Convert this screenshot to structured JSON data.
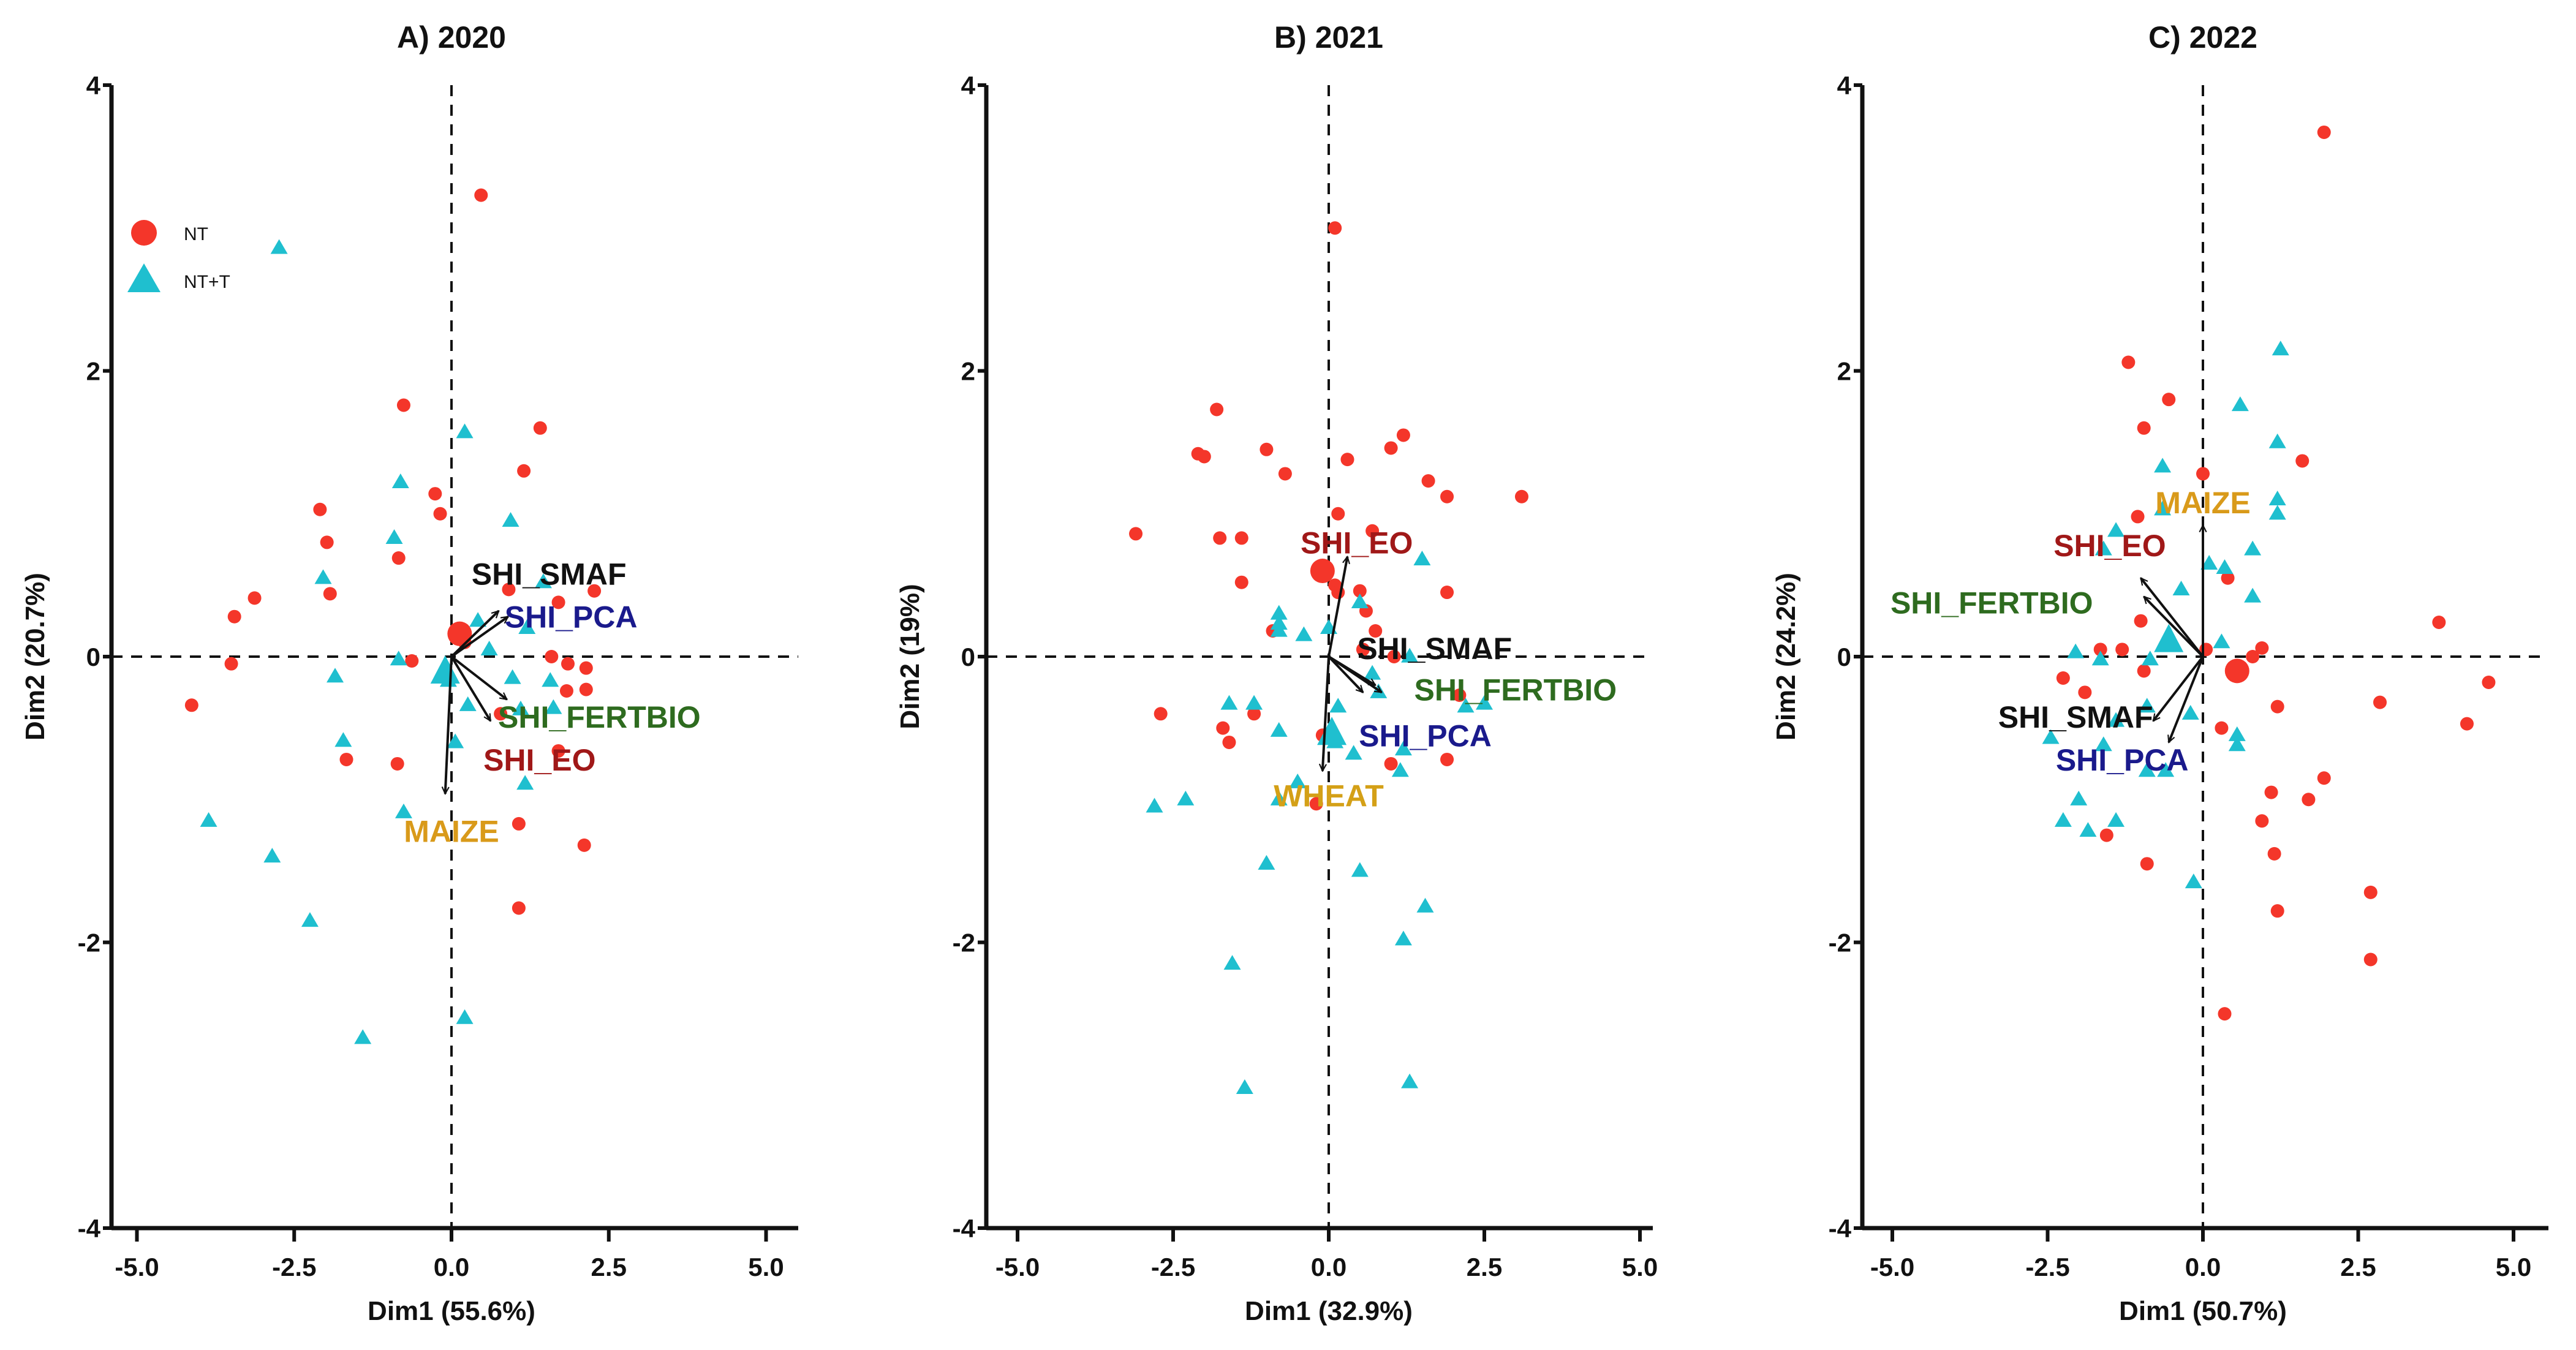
{
  "chart_data": [
    {
      "type": "scatter",
      "title": "A) 2020",
      "xlabel": "Dim1 (55.6%)",
      "ylabel": "Dim2 (20.7%)",
      "xlim": [
        -5.5,
        5.5
      ],
      "ylim": [
        -4,
        4
      ],
      "xticks": [
        "-5.0",
        "-2.5",
        "0.0",
        "2.5",
        "5.0"
      ],
      "yticks": [
        "-4",
        "-2",
        "0",
        "2",
        "4"
      ],
      "legend": {
        "show": true,
        "placement": "top-left",
        "entries": [
          "NT",
          "NT+T"
        ]
      },
      "series": [
        {
          "name": "NT",
          "marker": "circle",
          "color": "#f4362a",
          "points": [
            [
              0.47,
              3.23
            ],
            [
              -0.76,
              1.76
            ],
            [
              1.41,
              1.6
            ],
            [
              1.15,
              1.3
            ],
            [
              -0.26,
              1.14
            ],
            [
              -0.18,
              1.0
            ],
            [
              -2.09,
              1.03
            ],
            [
              -1.98,
              0.8
            ],
            [
              -0.84,
              0.69
            ],
            [
              -3.13,
              0.41
            ],
            [
              -3.45,
              0.28
            ],
            [
              -1.93,
              0.44
            ],
            [
              -3.5,
              -0.05
            ],
            [
              -4.13,
              -0.34
            ],
            [
              -0.63,
              -0.03
            ],
            [
              -1.67,
              -0.72
            ],
            [
              -0.86,
              -0.75
            ],
            [
              0.91,
              0.47
            ],
            [
              2.27,
              0.46
            ],
            [
              1.7,
              0.38
            ],
            [
              0.21,
              0.1
            ],
            [
              1.59,
              0.0
            ],
            [
              1.85,
              -0.05
            ],
            [
              2.14,
              -0.08
            ],
            [
              1.83,
              -0.24
            ],
            [
              2.14,
              -0.23
            ],
            [
              1.7,
              -0.66
            ],
            [
              1.07,
              -1.17
            ],
            [
              2.11,
              -1.32
            ],
            [
              1.07,
              -1.76
            ],
            [
              0.78,
              -0.4
            ]
          ],
          "centroid": [
            0.13,
            0.16
          ]
        },
        {
          "name": "NT+T",
          "marker": "triangle",
          "color": "#1fbfcf",
          "points": [
            [
              -2.74,
              2.86
            ],
            [
              0.21,
              1.57
            ],
            [
              -0.81,
              1.22
            ],
            [
              0.94,
              0.95
            ],
            [
              -0.91,
              0.83
            ],
            [
              -2.04,
              0.55
            ],
            [
              0.42,
              0.25
            ],
            [
              1.46,
              0.52
            ],
            [
              1.2,
              0.2
            ],
            [
              0.6,
              0.05
            ],
            [
              -0.84,
              -0.02
            ],
            [
              -1.85,
              -0.14
            ],
            [
              -0.16,
              -0.14
            ],
            [
              -0.05,
              -0.17
            ],
            [
              0.26,
              -0.34
            ],
            [
              0.97,
              -0.15
            ],
            [
              1.57,
              -0.17
            ],
            [
              1.1,
              -0.37
            ],
            [
              -1.72,
              -0.59
            ],
            [
              1.17,
              -0.89
            ],
            [
              -0.76,
              -1.09
            ],
            [
              -3.86,
              -1.15
            ],
            [
              -2.85,
              -1.4
            ],
            [
              -2.25,
              -1.85
            ],
            [
              -1.41,
              -2.67
            ],
            [
              0.21,
              -2.53
            ],
            [
              1.62,
              -0.36
            ],
            [
              0.06,
              -0.6
            ]
          ],
          "centroid": [
            -0.1,
            -0.12
          ]
        }
      ],
      "vectors": [
        {
          "name": "SHI_SMAF",
          "end": [
            0.75,
            0.32
          ],
          "color": "#111111",
          "label_at": [
            1.55,
            0.58
          ]
        },
        {
          "name": "SHI_PCA",
          "end": [
            0.9,
            0.28
          ],
          "color": "#1a1a8c",
          "label_at": [
            1.9,
            0.28
          ]
        },
        {
          "name": "SHI_FERTBIO",
          "end": [
            0.88,
            -0.3
          ],
          "color": "#2e6b1f",
          "label_at": [
            2.35,
            -0.42
          ]
        },
        {
          "name": "SHI_EO",
          "end": [
            0.62,
            -0.45
          ],
          "color": "#a01818",
          "label_at": [
            1.4,
            -0.72
          ]
        },
        {
          "name": "MAIZE",
          "end": [
            -0.1,
            -0.96
          ],
          "color": "#d99a1a",
          "label_at": [
            0.0,
            -1.22
          ]
        }
      ]
    },
    {
      "type": "scatter",
      "title": "B) 2021",
      "xlabel": "Dim1 (32.9%)",
      "ylabel": "Dim2 (19%)",
      "xlim": [
        -5.5,
        5.5
      ],
      "ylim": [
        -4,
        4
      ],
      "xticks": [
        "-5.0",
        "-2.5",
        "0.0",
        "2.5",
        "5.0"
      ],
      "yticks": [
        "-4",
        "-2",
        "0",
        "2",
        "4"
      ],
      "legend": {
        "show": false
      },
      "series": [
        {
          "name": "NT",
          "marker": "circle",
          "color": "#f4362a",
          "points": [
            [
              0.1,
              3.0
            ],
            [
              -1.8,
              1.73
            ],
            [
              -2.1,
              1.42
            ],
            [
              -2.0,
              1.4
            ],
            [
              -1.0,
              1.45
            ],
            [
              -0.7,
              1.28
            ],
            [
              0.3,
              1.38
            ],
            [
              1.0,
              1.46
            ],
            [
              1.2,
              1.55
            ],
            [
              1.6,
              1.23
            ],
            [
              1.9,
              1.12
            ],
            [
              3.1,
              1.12
            ],
            [
              0.15,
              1.0
            ],
            [
              -3.1,
              0.86
            ],
            [
              -1.75,
              0.83
            ],
            [
              -1.4,
              0.83
            ],
            [
              0.7,
              0.88
            ],
            [
              -1.4,
              0.52
            ],
            [
              0.1,
              0.5
            ],
            [
              0.15,
              0.45
            ],
            [
              0.5,
              0.46
            ],
            [
              0.6,
              0.32
            ],
            [
              1.9,
              0.45
            ],
            [
              0.75,
              0.18
            ],
            [
              -0.9,
              0.18
            ],
            [
              0.55,
              0.05
            ],
            [
              1.05,
              0.0
            ],
            [
              -1.2,
              -0.4
            ],
            [
              -2.7,
              -0.4
            ],
            [
              -1.7,
              -0.5
            ],
            [
              -1.6,
              -0.6
            ],
            [
              -0.1,
              -0.55
            ],
            [
              2.1,
              -0.27
            ],
            [
              1.0,
              -0.75
            ],
            [
              1.9,
              -0.72
            ],
            [
              -0.2,
              -1.03
            ]
          ],
          "centroid": [
            -0.1,
            0.6
          ]
        },
        {
          "name": "NT+T",
          "marker": "triangle",
          "color": "#1fbfcf",
          "points": [
            [
              1.5,
              0.68
            ],
            [
              0.5,
              0.38
            ],
            [
              -0.8,
              0.3
            ],
            [
              -0.8,
              0.23
            ],
            [
              -0.8,
              0.18
            ],
            [
              -0.4,
              0.15
            ],
            [
              0.0,
              0.2
            ],
            [
              1.3,
              0.0
            ],
            [
              0.7,
              -0.12
            ],
            [
              0.8,
              -0.25
            ],
            [
              -1.6,
              -0.33
            ],
            [
              -1.2,
              -0.33
            ],
            [
              0.15,
              -0.35
            ],
            [
              -0.8,
              -0.52
            ],
            [
              0.1,
              -0.6
            ],
            [
              -0.5,
              -0.88
            ],
            [
              1.15,
              -0.8
            ],
            [
              2.2,
              -0.35
            ],
            [
              2.5,
              -0.33
            ],
            [
              0.4,
              -0.68
            ],
            [
              1.2,
              -0.65
            ],
            [
              -2.8,
              -1.05
            ],
            [
              -2.3,
              -1.0
            ],
            [
              -1.0,
              -1.45
            ],
            [
              0.5,
              -1.5
            ],
            [
              1.55,
              -1.75
            ],
            [
              1.2,
              -1.98
            ],
            [
              -1.55,
              -2.15
            ],
            [
              -1.35,
              -3.02
            ],
            [
              1.3,
              -2.98
            ],
            [
              -0.8,
              -1.0
            ]
          ],
          "centroid": [
            0.05,
            -0.55
          ]
        }
      ],
      "vectors": [
        {
          "name": "SHI_EO",
          "end": [
            0.3,
            0.7
          ],
          "color": "#a01818",
          "label_at": [
            0.45,
            0.8
          ]
        },
        {
          "name": "SHI_SMAF",
          "end": [
            0.75,
            -0.2
          ],
          "color": "#111111",
          "label_at": [
            1.7,
            0.06
          ]
        },
        {
          "name": "SHI_FERTBIO",
          "end": [
            0.85,
            -0.25
          ],
          "color": "#2e6b1f",
          "label_at": [
            3.0,
            -0.23
          ]
        },
        {
          "name": "SHI_PCA",
          "end": [
            0.55,
            -0.25
          ],
          "color": "#1a1a8c",
          "label_at": [
            1.55,
            -0.55
          ]
        },
        {
          "name": "WHEAT",
          "end": [
            -0.1,
            -0.8
          ],
          "color": "#d4a017",
          "label_at": [
            0.0,
            -0.97
          ]
        }
      ]
    },
    {
      "type": "scatter",
      "title": "C) 2022",
      "xlabel": "Dim1 (50.7%)",
      "ylabel": "Dim2 (24.2%)",
      "xlim": [
        -5.5,
        5.5
      ],
      "ylim": [
        -4,
        4
      ],
      "xticks": [
        "-5.0",
        "-2.5",
        "0.0",
        "2.5",
        "5.0"
      ],
      "yticks": [
        "-4",
        "-2",
        "0",
        "2",
        "4"
      ],
      "legend": {
        "show": false
      },
      "series": [
        {
          "name": "NT",
          "marker": "circle",
          "color": "#f4362a",
          "points": [
            [
              1.95,
              3.67
            ],
            [
              -1.2,
              2.06
            ],
            [
              -0.55,
              1.8
            ],
            [
              -0.95,
              1.6
            ],
            [
              1.6,
              1.37
            ],
            [
              -0.0,
              1.28
            ],
            [
              -1.05,
              0.98
            ],
            [
              0.4,
              0.55
            ],
            [
              -1.3,
              0.05
            ],
            [
              -1.65,
              0.05
            ],
            [
              -1.0,
              0.25
            ],
            [
              0.05,
              0.05
            ],
            [
              0.95,
              0.06
            ],
            [
              0.8,
              0.0
            ],
            [
              3.8,
              0.24
            ],
            [
              -2.25,
              -0.15
            ],
            [
              -1.9,
              -0.25
            ],
            [
              -0.95,
              -0.1
            ],
            [
              1.2,
              -0.35
            ],
            [
              2.85,
              -0.32
            ],
            [
              4.6,
              -0.18
            ],
            [
              0.3,
              -0.5
            ],
            [
              4.25,
              -0.47
            ],
            [
              1.95,
              -0.85
            ],
            [
              1.1,
              -0.95
            ],
            [
              1.7,
              -1.0
            ],
            [
              0.95,
              -1.15
            ],
            [
              -1.55,
              -1.25
            ],
            [
              1.15,
              -1.38
            ],
            [
              -0.9,
              -1.45
            ],
            [
              2.7,
              -1.65
            ],
            [
              1.2,
              -1.78
            ],
            [
              2.7,
              -2.12
            ],
            [
              0.35,
              -2.5
            ]
          ],
          "centroid": [
            0.55,
            -0.1
          ]
        },
        {
          "name": "NT+T",
          "marker": "triangle",
          "color": "#1fbfcf",
          "points": [
            [
              1.25,
              2.15
            ],
            [
              0.6,
              1.76
            ],
            [
              1.2,
              1.5
            ],
            [
              -0.65,
              1.33
            ],
            [
              1.2,
              1.1
            ],
            [
              1.2,
              1.0
            ],
            [
              -0.65,
              1.03
            ],
            [
              -1.4,
              0.88
            ],
            [
              -1.6,
              0.75
            ],
            [
              0.8,
              0.75
            ],
            [
              0.35,
              0.62
            ],
            [
              0.1,
              0.65
            ],
            [
              -0.35,
              0.47
            ],
            [
              0.8,
              0.42
            ],
            [
              -0.55,
              0.15
            ],
            [
              0.3,
              0.1
            ],
            [
              -2.05,
              0.03
            ],
            [
              -1.65,
              -0.02
            ],
            [
              -0.85,
              -0.02
            ],
            [
              -0.9,
              -0.35
            ],
            [
              -1.4,
              -0.45
            ],
            [
              -0.2,
              -0.4
            ],
            [
              0.55,
              -0.55
            ],
            [
              0.55,
              -0.62
            ],
            [
              -2.45,
              -0.57
            ],
            [
              -1.6,
              -0.62
            ],
            [
              -0.9,
              -0.8
            ],
            [
              -0.6,
              -0.8
            ],
            [
              -2.0,
              -1.0
            ],
            [
              -2.25,
              -1.15
            ],
            [
              -1.85,
              -1.22
            ],
            [
              -1.4,
              -1.15
            ],
            [
              -0.15,
              -1.58
            ]
          ],
          "centroid": [
            -0.55,
            0.1
          ]
        }
      ],
      "vectors": [
        {
          "name": "MAIZE",
          "end": [
            0.0,
            0.92
          ],
          "color": "#d99a1a",
          "label_at": [
            0.0,
            1.08
          ]
        },
        {
          "name": "SHI_EO",
          "end": [
            -1.0,
            0.55
          ],
          "color": "#a01818",
          "label_at": [
            -1.5,
            0.78
          ]
        },
        {
          "name": "SHI_FERTBIO",
          "end": [
            -0.95,
            0.42
          ],
          "color": "#2e6b1f",
          "label_at": [
            -3.4,
            0.38
          ]
        },
        {
          "name": "SHI_SMAF",
          "end": [
            -0.8,
            -0.45
          ],
          "color": "#111111",
          "label_at": [
            -2.05,
            -0.42
          ]
        },
        {
          "name": "SHI_PCA",
          "end": [
            -0.55,
            -0.6
          ],
          "color": "#1a1a8c",
          "label_at": [
            -1.3,
            -0.72
          ]
        }
      ]
    }
  ]
}
